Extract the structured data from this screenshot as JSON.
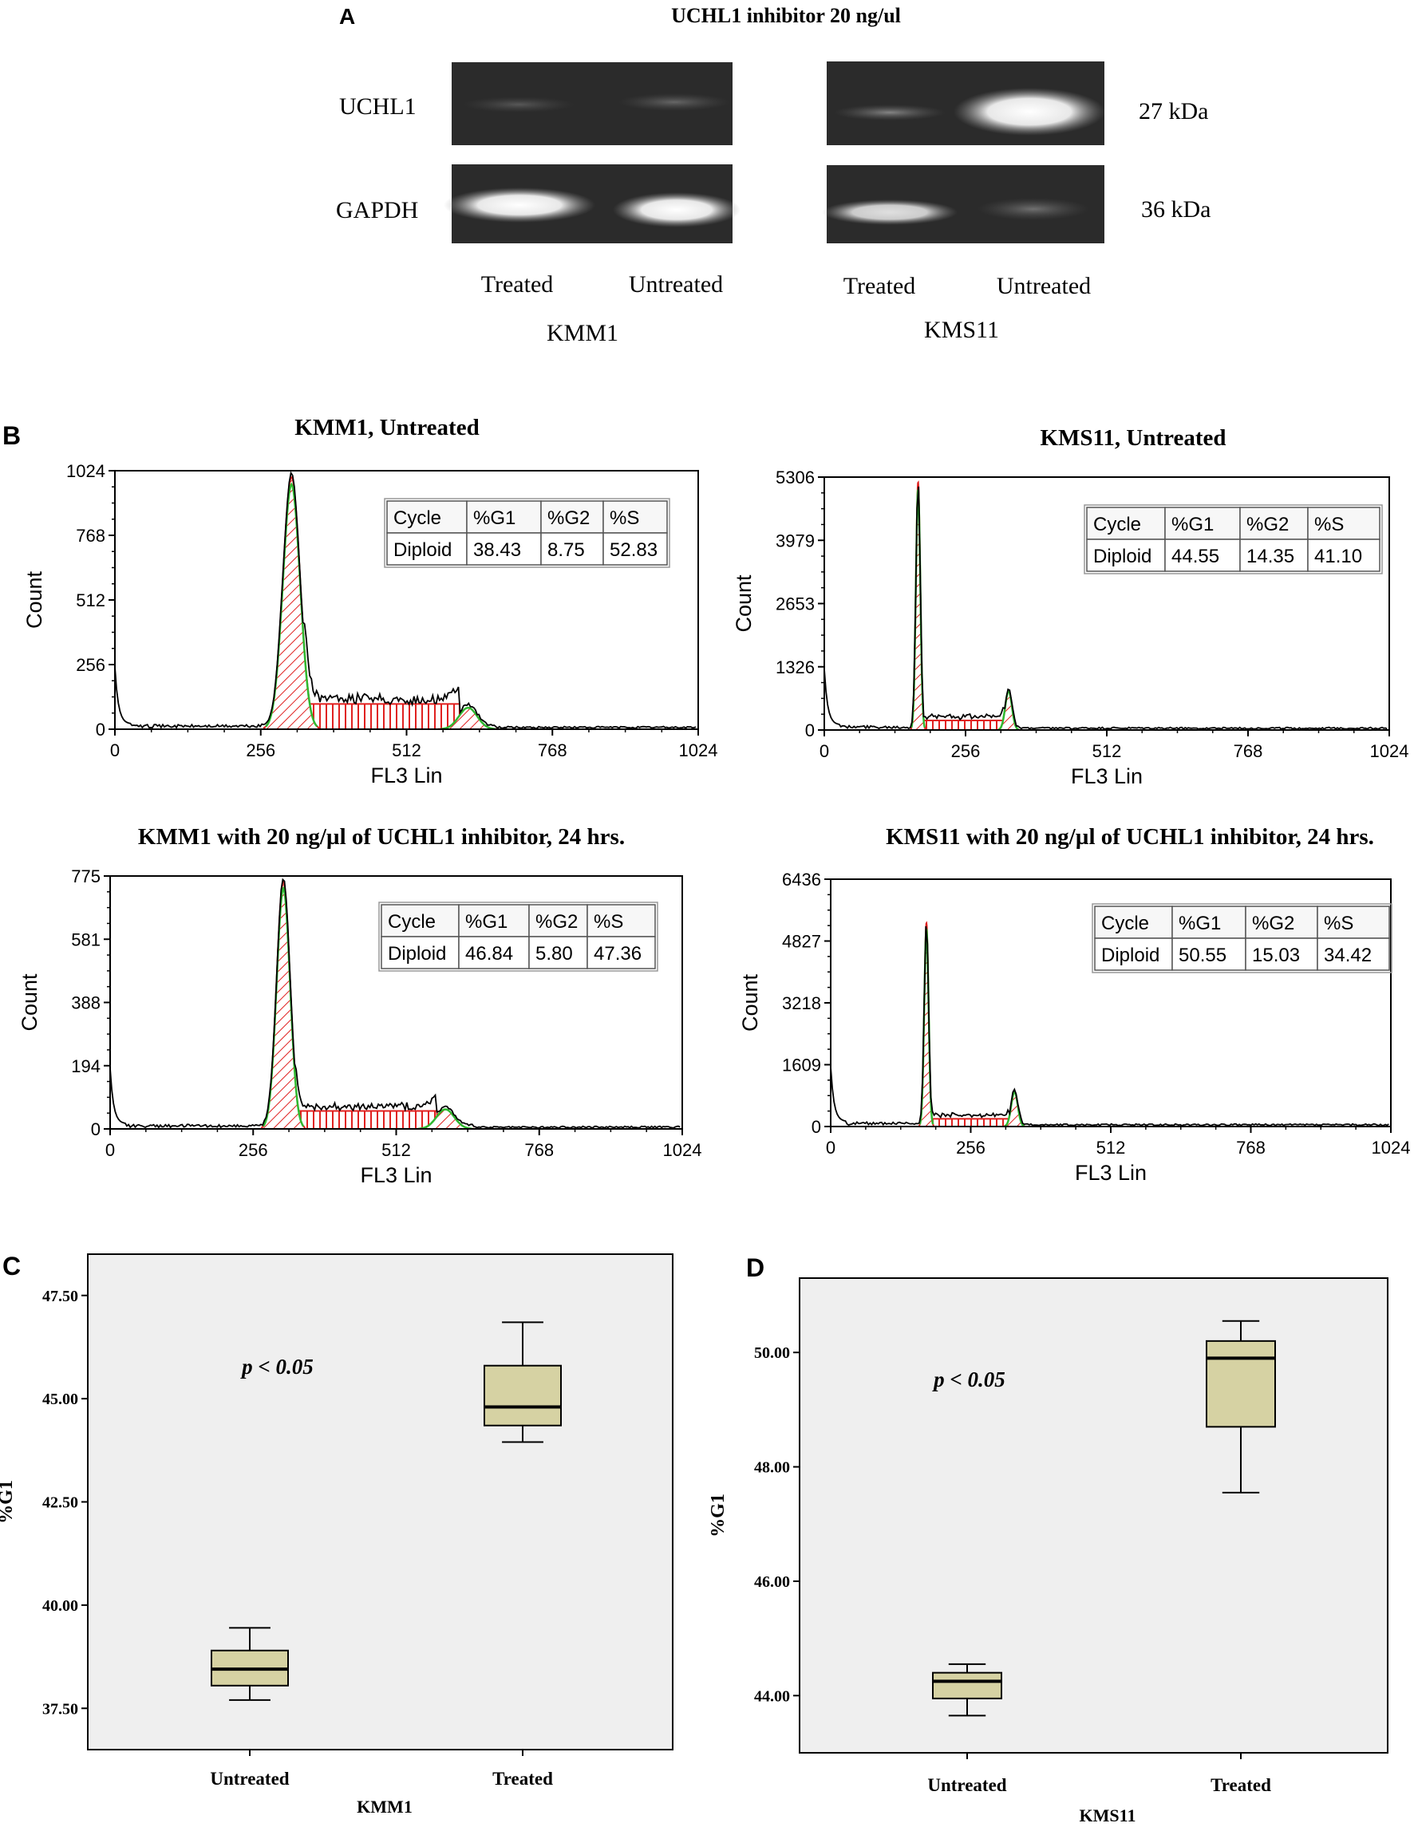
{
  "panel_letters": {
    "a": "A",
    "b": "B",
    "c": "C",
    "d": "D"
  },
  "blot": {
    "title": "UCHL1 inhibitor 20 ng/ul",
    "rows": [
      "UCHL1",
      "GAPDH"
    ],
    "sizes": [
      "27 kDa",
      "36 kDa"
    ],
    "lanes": [
      "Treated",
      "Untreated"
    ],
    "cell_lines": [
      "KMM1",
      "KMS11"
    ],
    "colors": {
      "blot_bg": "#2b2b2b",
      "band": "#ffffff"
    }
  },
  "colors": {
    "hist_fill": "#e0201f",
    "hist_fit": "#2fb82f",
    "box_fill": "#d6d2a3",
    "plot_bg": "#efefef"
  },
  "chart_data": [
    {
      "id": "b1",
      "type": "histogram",
      "title": "KMM1, Untreated",
      "xlabel": "FL3 Lin",
      "ylabel": "Count",
      "xlim": [
        0,
        1024
      ],
      "ylim": [
        0,
        1024
      ],
      "xticks": [
        "0",
        "256",
        "512",
        "768",
        "1024"
      ],
      "yticks": [
        "0",
        "256",
        "512",
        "768",
        "1024"
      ],
      "peaks": {
        "g1": 310,
        "g1_sd": 15,
        "g1_height": 1000,
        "g2": 620,
        "g2_sd": 16,
        "g2_height": 85,
        "s_level": 100,
        "s_start": 330,
        "s_end": 605
      },
      "table": {
        "headers": [
          "Cycle",
          "%G1",
          "%G2",
          "%S"
        ],
        "row": [
          "Diploid",
          "38.43",
          "8.75",
          "52.83"
        ]
      }
    },
    {
      "id": "b2",
      "type": "histogram",
      "title": "KMS11, Untreated",
      "xlabel": "FL3 Lin",
      "ylabel": "Count",
      "xlim": [
        0,
        1024
      ],
      "ylim": [
        0,
        5306
      ],
      "xticks": [
        "0",
        "256",
        "512",
        "768",
        "1024"
      ],
      "yticks": [
        "0",
        "1326",
        "2653",
        "3979",
        "5306"
      ],
      "peaks": {
        "g1": 170,
        "g1_sd": 4,
        "g1_height": 5200,
        "g2": 334,
        "g2_sd": 6,
        "g2_height": 820,
        "s_level": 200,
        "s_start": 180,
        "s_end": 325
      },
      "table": {
        "headers": [
          "Cycle",
          "%G1",
          "%G2",
          "%S"
        ],
        "row": [
          "Diploid",
          "44.55",
          "14.35",
          "41.10"
        ]
      }
    },
    {
      "id": "b3",
      "type": "histogram",
      "title": "KMM1 with 20 ng/µl of UCHL1 inhibitor, 24 hrs.",
      "xlabel": "FL3 Lin",
      "ylabel": "Count",
      "xlim": [
        0,
        1024
      ],
      "ylim": [
        0,
        775
      ],
      "xticks": [
        "0",
        "256",
        "512",
        "768",
        "1024"
      ],
      "yticks": [
        "0",
        "194",
        "388",
        "581",
        "775"
      ],
      "peaks": {
        "g1": 310,
        "g1_sd": 12,
        "g1_height": 760,
        "g2": 600,
        "g2_sd": 16,
        "g2_height": 60,
        "s_level": 55,
        "s_start": 330,
        "s_end": 585
      },
      "table": {
        "headers": [
          "Cycle",
          "%G1",
          "%G2",
          "%S"
        ],
        "row": [
          "Diploid",
          "46.84",
          "5.80",
          "47.36"
        ]
      }
    },
    {
      "id": "b4",
      "type": "histogram",
      "title": "KMS11 with 20 ng/µl of UCHL1 inhibitor, 24 hrs.",
      "xlabel": "FL3 Lin",
      "ylabel": "Count",
      "xlim": [
        0,
        1024
      ],
      "ylim": [
        0,
        6436
      ],
      "xticks": [
        "0",
        "256",
        "512",
        "768",
        "1024"
      ],
      "yticks": [
        "0",
        "1609",
        "3218",
        "4827",
        "6436"
      ],
      "peaks": {
        "g1": 175,
        "g1_sd": 4,
        "g1_height": 5300,
        "g2": 336,
        "g2_sd": 6,
        "g2_height": 900,
        "s_level": 200,
        "s_start": 185,
        "s_end": 327
      },
      "table": {
        "headers": [
          "Cycle",
          "%G1",
          "%G2",
          "%S"
        ],
        "row": [
          "Diploid",
          "50.55",
          "15.03",
          "34.42"
        ]
      }
    },
    {
      "id": "c",
      "type": "boxplot",
      "xlabel": "KMM1",
      "ylabel": "%G1",
      "ylim": [
        36.5,
        48.5
      ],
      "yticks": [
        37.5,
        40.0,
        42.5,
        45.0,
        47.5
      ],
      "ytick_labels": [
        "37.50",
        "40.00",
        "42.50",
        "45.00",
        "47.50"
      ],
      "categories": [
        "Untreated",
        "Treated"
      ],
      "boxes": [
        {
          "min": 37.7,
          "q1": 38.05,
          "median": 38.45,
          "q3": 38.9,
          "max": 39.45
        },
        {
          "min": 43.95,
          "q1": 44.35,
          "median": 44.8,
          "q3": 45.8,
          "max": 46.85
        }
      ],
      "annotation": "p < 0.05"
    },
    {
      "id": "d",
      "type": "boxplot",
      "xlabel": "KMS11",
      "ylabel": "%G1",
      "ylim": [
        43.0,
        51.3
      ],
      "yticks": [
        44.0,
        46.0,
        48.0,
        50.0
      ],
      "ytick_labels": [
        "44.00",
        "46.00",
        "48.00",
        "50.00"
      ],
      "categories": [
        "Untreated",
        "Treated"
      ],
      "boxes": [
        {
          "min": 43.65,
          "q1": 43.95,
          "median": 44.25,
          "q3": 44.4,
          "max": 44.55
        },
        {
          "min": 47.55,
          "q1": 48.7,
          "median": 49.9,
          "q3": 50.2,
          "max": 50.55
        }
      ],
      "annotation": "p < 0.05"
    }
  ]
}
